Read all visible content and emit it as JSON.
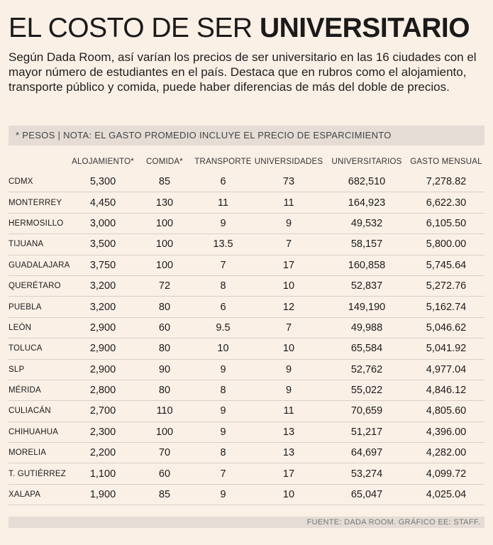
{
  "header": {
    "title_light": "EL COSTO DE SER",
    "title_bold": "UNIVERSITARIO",
    "subtitle": "Según Dada Room, así varían los precios de ser universitario en las 16 ciudades con el mayor número de estudiantes en el país. Destaca que en rubros como el alojamiento, transporte público y comida, puede haber diferencias de más del doble de precios."
  },
  "note": "* PESOS | NOTA: EL GASTO PROMEDIO INCLUYE EL PRECIO DE ESPARCIMIENTO",
  "source": "FUENTE: DADA ROOM.  GRÁFICO EE: STAFF.",
  "chart_data": {
    "type": "table",
    "columns": [
      "ALOJAMIENTO*",
      "COMIDA*",
      "TRANSPORTE",
      "UNIVERSIDADES",
      "UNIVERSITARIOS",
      "GASTO MENSUAL"
    ],
    "rows": [
      {
        "city": "CDMX",
        "values": [
          "5,300",
          "85",
          "6",
          "73",
          "682,510",
          "7,278.82"
        ]
      },
      {
        "city": "MONTERREY",
        "values": [
          "4,450",
          "130",
          "11",
          "11",
          "164,923",
          "6,622.30"
        ]
      },
      {
        "city": "HERMOSILLO",
        "values": [
          "3,000",
          "100",
          "9",
          "9",
          "49,532",
          "6,105.50"
        ]
      },
      {
        "city": "TIJUANA",
        "values": [
          "3,500",
          "100",
          "13.5",
          "7",
          "58,157",
          "5,800.00"
        ]
      },
      {
        "city": "GUADALAJARA",
        "values": [
          "3,750",
          "100",
          "7",
          "17",
          "160,858",
          "5,745.64"
        ]
      },
      {
        "city": "QUERÉTARO",
        "values": [
          "3,200",
          "72",
          "8",
          "10",
          "52,837",
          "5,272.76"
        ]
      },
      {
        "city": "PUEBLA",
        "values": [
          "3,200",
          "80",
          "6",
          "12",
          "149,190",
          "5,162.74"
        ]
      },
      {
        "city": "LEÓN",
        "values": [
          "2,900",
          "60",
          "9.5",
          "7",
          "49,988",
          "5,046.62"
        ]
      },
      {
        "city": "TOLUCA",
        "values": [
          "2,900",
          "80",
          "10",
          "10",
          "65,584",
          "5,041.92"
        ]
      },
      {
        "city": "SLP",
        "values": [
          "2,900",
          "90",
          "9",
          "9",
          "52,762",
          "4,977.04"
        ]
      },
      {
        "city": "MÉRIDA",
        "values": [
          "2,800",
          "80",
          "8",
          "9",
          "55,022",
          "4,846.12"
        ]
      },
      {
        "city": "CULIACÁN",
        "values": [
          "2,700",
          "110",
          "9",
          "11",
          "70,659",
          "4,805.60"
        ]
      },
      {
        "city": "CHIHUAHUA",
        "values": [
          "2,300",
          "100",
          "9",
          "13",
          "51,217",
          "4,396.00"
        ]
      },
      {
        "city": "MORELIA",
        "values": [
          "2,200",
          "70",
          "8",
          "13",
          "64,697",
          "4,282.00"
        ]
      },
      {
        "city": "T. GUTIÉRREZ",
        "values": [
          "1,100",
          "60",
          "7",
          "17",
          "53,274",
          "4,099.72"
        ]
      },
      {
        "city": "XALAPA",
        "values": [
          "1,900",
          "85",
          "9",
          "10",
          "65,047",
          "4,025.04"
        ]
      }
    ]
  }
}
